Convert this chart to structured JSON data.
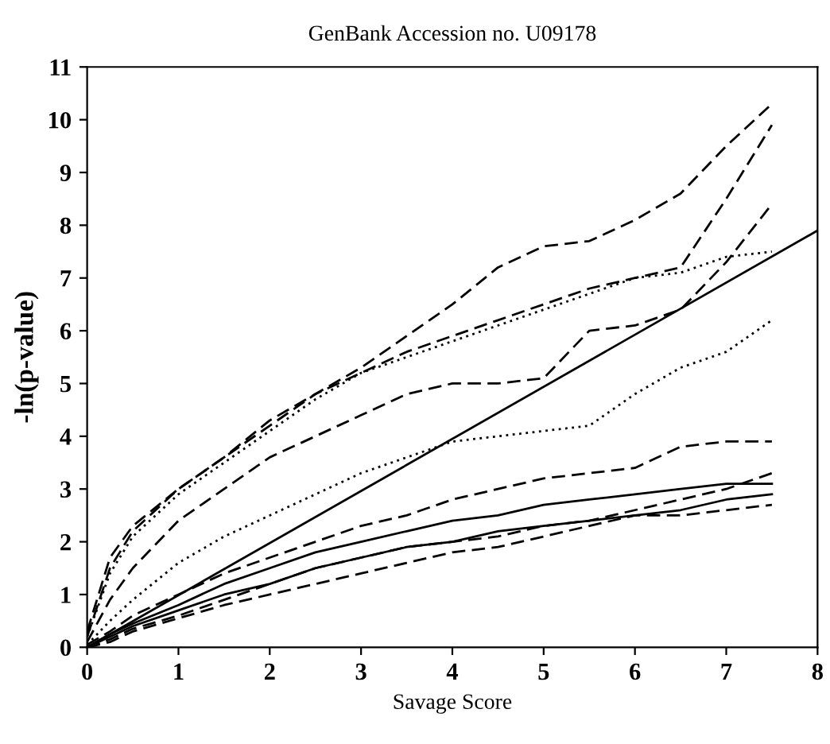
{
  "chart_data": {
    "type": "line",
    "title": "GenBank Accession no. U09178",
    "xlabel": "Savage Score",
    "ylabel": "-ln(p-value)",
    "xlim": [
      0,
      8
    ],
    "ylim": [
      0,
      11
    ],
    "xticks": [
      0,
      1,
      2,
      3,
      4,
      5,
      6,
      7,
      8
    ],
    "yticks": [
      0,
      1,
      2,
      3,
      4,
      5,
      6,
      7,
      8,
      9,
      10,
      11
    ],
    "grid": false,
    "legend": false,
    "marker": "none",
    "x": [
      0,
      0.25,
      0.5,
      1,
      1.5,
      2,
      2.5,
      3,
      3.5,
      4,
      4.5,
      5,
      5.5,
      6,
      6.5,
      7,
      7.5
    ],
    "series": [
      {
        "color": "#000000",
        "line_style": "dashed",
        "values": [
          0.3,
          1.7,
          2.3,
          3.0,
          3.6,
          4.3,
          4.8,
          5.3,
          5.9,
          6.5,
          7.2,
          7.6,
          7.7,
          8.1,
          8.6,
          9.5,
          10.3
        ]
      },
      {
        "color": "#000000",
        "line_style": "dashed",
        "values": [
          0.2,
          1.5,
          2.2,
          3.0,
          3.6,
          4.2,
          4.8,
          5.2,
          5.6,
          5.9,
          6.2,
          6.5,
          6.8,
          7.0,
          7.2,
          8.5,
          9.9
        ]
      },
      {
        "color": "#000000",
        "line_style": "dotted",
        "values": [
          0.2,
          1.4,
          2.1,
          2.9,
          3.5,
          4.1,
          4.7,
          5.2,
          5.5,
          5.8,
          6.1,
          6.4,
          6.7,
          7.0,
          7.1,
          7.4,
          7.5
        ]
      },
      {
        "color": "#000000",
        "line_style": "dashed",
        "values": [
          0.1,
          0.9,
          1.5,
          2.4,
          3.0,
          3.6,
          4.0,
          4.4,
          4.8,
          5.0,
          5.0,
          5.1,
          6.0,
          6.1,
          6.4,
          7.3,
          8.4
        ]
      },
      {
        "color": "#000000",
        "line_style": "solid",
        "x": [
          0,
          8
        ],
        "values": [
          0,
          7.9
        ]
      },
      {
        "color": "#000000",
        "line_style": "dotted",
        "values": [
          0.05,
          0.5,
          0.9,
          1.6,
          2.1,
          2.5,
          2.9,
          3.3,
          3.6,
          3.9,
          4.0,
          4.1,
          4.2,
          4.8,
          5.3,
          5.6,
          6.2
        ]
      },
      {
        "color": "#000000",
        "line_style": "dashed",
        "values": [
          0.05,
          0.3,
          0.6,
          1.0,
          1.4,
          1.7,
          2.0,
          2.3,
          2.5,
          2.8,
          3.0,
          3.2,
          3.3,
          3.4,
          3.8,
          3.9,
          3.9
        ]
      },
      {
        "color": "#000000",
        "line_style": "solid",
        "values": [
          0,
          0.25,
          0.45,
          0.8,
          1.2,
          1.5,
          1.8,
          2.0,
          2.2,
          2.4,
          2.5,
          2.7,
          2.8,
          2.9,
          3.0,
          3.1,
          3.1
        ]
      },
      {
        "color": "#000000",
        "line_style": "dashed",
        "values": [
          0,
          0.15,
          0.35,
          0.6,
          0.9,
          1.2,
          1.5,
          1.7,
          1.9,
          2.0,
          2.1,
          2.3,
          2.4,
          2.6,
          2.8,
          3.0,
          3.3
        ]
      },
      {
        "color": "#000000",
        "line_style": "solid",
        "values": [
          0,
          0.2,
          0.4,
          0.7,
          1.0,
          1.2,
          1.5,
          1.7,
          1.9,
          2.0,
          2.2,
          2.3,
          2.4,
          2.5,
          2.6,
          2.8,
          2.9
        ]
      },
      {
        "color": "#000000",
        "line_style": "dashed",
        "values": [
          0,
          0.1,
          0.3,
          0.55,
          0.8,
          1.0,
          1.2,
          1.4,
          1.6,
          1.8,
          1.9,
          2.1,
          2.3,
          2.5,
          2.5,
          2.6,
          2.7
        ]
      }
    ]
  }
}
